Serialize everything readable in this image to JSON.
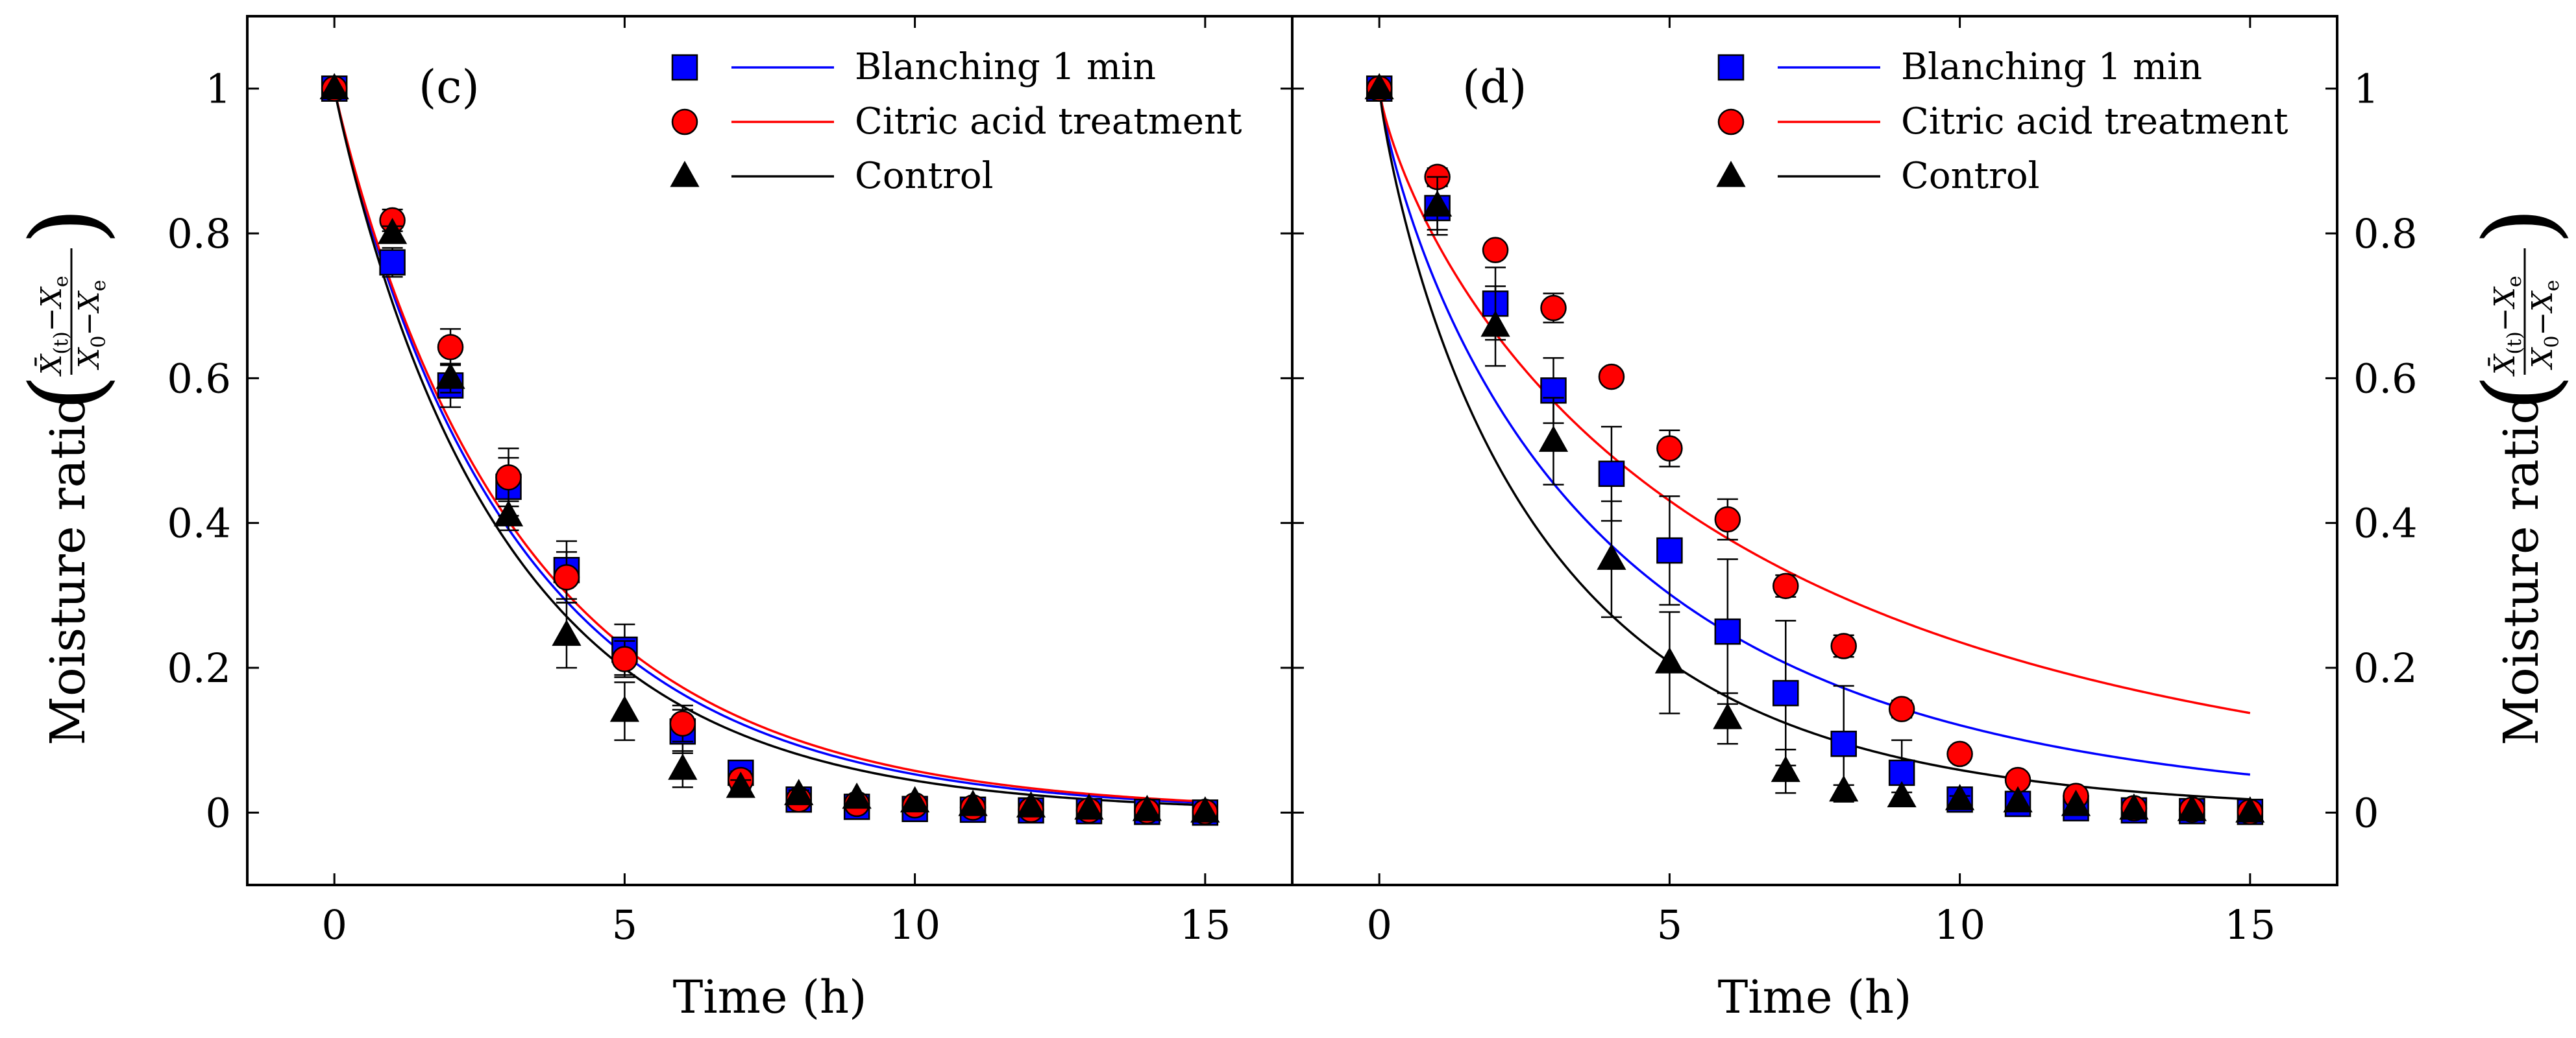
{
  "y_axis_label": {
    "text": "Moisture ratio",
    "numerator_main": "X̄",
    "numerator_sub": "(t)",
    "numerator_rest": "−X",
    "numerator_rest_sub": "e",
    "denominator_main": "X",
    "denominator_sub": "0",
    "denominator_rest": "−X",
    "denominator_rest_sub": "e"
  },
  "series_styles": [
    {
      "name": "Blanching 1 min",
      "color": "#0000ff",
      "marker": "square"
    },
    {
      "name": "Citric acid treatment",
      "color": "#ff0000",
      "marker": "circle"
    },
    {
      "name": "Control",
      "color": "#000000",
      "marker": "triangle"
    }
  ],
  "chart_data": [
    {
      "type": "scatter",
      "panel_label": "(c)",
      "xlabel": "Time (h)",
      "ylabel_side": "left",
      "xlim": [
        -1.5,
        16.5
      ],
      "ylim": [
        -0.1,
        1.1
      ],
      "xticks": [
        0,
        5,
        10,
        15
      ],
      "yticks": [
        0,
        0.2,
        0.4,
        0.6,
        0.8,
        1
      ],
      "xtick_labels": [
        "0",
        "5",
        "10",
        "15"
      ],
      "ytick_labels": [
        "0",
        "0.2",
        "0.4",
        "0.6",
        "0.8",
        "1"
      ],
      "legend_position": "top-right",
      "series": [
        {
          "name": "Blanching 1 min",
          "x": [
            0,
            1,
            2,
            3,
            4,
            5,
            6,
            7,
            8,
            9,
            10,
            11,
            12,
            13,
            14,
            15
          ],
          "y": [
            1.0,
            0.76,
            0.59,
            0.45,
            0.335,
            0.225,
            0.112,
            0.055,
            0.018,
            0.008,
            0.005,
            0.004,
            0.003,
            0.002,
            0.001,
            0.0
          ],
          "err": [
            0,
            0.02,
            0.03,
            0.04,
            0.04,
            0.035,
            0.03,
            0.015,
            0.008,
            0.005,
            0.004,
            0.003,
            0.002,
            0.002,
            0.001,
            0.0
          ],
          "fit_k": 0.33,
          "fit_n": 0.95
        },
        {
          "name": "Citric acid treatment",
          "x": [
            0,
            1,
            2,
            3,
            4,
            5,
            6,
            7,
            8,
            9,
            10,
            11,
            12,
            13,
            14,
            15
          ],
          "y": [
            1.0,
            0.818,
            0.643,
            0.463,
            0.325,
            0.212,
            0.123,
            0.045,
            0.018,
            0.012,
            0.01,
            0.007,
            0.004,
            0.003,
            0.002,
            0.001
          ],
          "err": [
            0,
            0.015,
            0.025,
            0.04,
            0.035,
            0.025,
            0.025,
            0.012,
            0.006,
            0.004,
            0.004,
            0.003,
            0.002,
            0.002,
            0.001,
            0.001
          ],
          "fit_k": 0.32,
          "fit_n": 0.95
        },
        {
          "name": "Control",
          "x": [
            0,
            1,
            2,
            3,
            4,
            5,
            6,
            7,
            8,
            9,
            10,
            11,
            12,
            13,
            14,
            15
          ],
          "y": [
            1.0,
            0.8,
            0.6,
            0.41,
            0.245,
            0.14,
            0.06,
            0.035,
            0.025,
            0.02,
            0.015,
            0.01,
            0.008,
            0.005,
            0.003,
            0.001
          ],
          "err": [
            0,
            0.01,
            0.02,
            0.02,
            0.045,
            0.04,
            0.025,
            0.01,
            0.006,
            0.005,
            0.004,
            0.003,
            0.002,
            0.002,
            0.001,
            0.001
          ],
          "fit_k": 0.35,
          "fit_n": 0.95
        }
      ]
    },
    {
      "type": "scatter",
      "panel_label": "(d)",
      "xlabel": "Time (h)",
      "ylabel_side": "right",
      "xlim": [
        -1.5,
        16.5
      ],
      "ylim": [
        -0.1,
        1.1
      ],
      "xticks": [
        0,
        5,
        10,
        15
      ],
      "yticks": [
        0,
        0.2,
        0.4,
        0.6,
        0.8,
        1
      ],
      "xtick_labels": [
        "0",
        "5",
        "10",
        "15"
      ],
      "ytick_labels": [
        "0",
        "0.2",
        "0.4",
        "0.6",
        "0.8",
        "1"
      ],
      "legend_position": "top-right",
      "series": [
        {
          "name": "Blanching 1 min",
          "x": [
            0,
            1,
            2,
            3,
            4,
            5,
            6,
            7,
            8,
            9,
            10,
            11,
            12,
            13,
            14,
            15
          ],
          "y": [
            1.0,
            0.835,
            0.703,
            0.583,
            0.468,
            0.362,
            0.25,
            0.165,
            0.095,
            0.055,
            0.018,
            0.012,
            0.006,
            0.003,
            0.002,
            0.001
          ],
          "err": [
            0,
            0.03,
            0.05,
            0.045,
            0.065,
            0.075,
            0.1,
            0.1,
            0.08,
            0.045,
            0.01,
            0.008,
            0.004,
            0.003,
            0.002,
            0.001
          ],
          "fit_k": 0.32,
          "fit_n": 0.82
        },
        {
          "name": "Citric acid treatment",
          "x": [
            0,
            1,
            2,
            3,
            4,
            5,
            6,
            7,
            8,
            9,
            10,
            11,
            12,
            13,
            14,
            15
          ],
          "y": [
            1.0,
            0.878,
            0.777,
            0.697,
            0.602,
            0.503,
            0.405,
            0.313,
            0.23,
            0.143,
            0.081,
            0.045,
            0.023,
            0.006,
            0.004,
            0.001
          ],
          "err": [
            0,
            0.012,
            0.01,
            0.02,
            0.01,
            0.025,
            0.028,
            0.015,
            0.015,
            0.012,
            0.008,
            0.005,
            0.004,
            0.003,
            0.002,
            0.001
          ],
          "fit_k": 0.24,
          "fit_n": 0.78
        },
        {
          "name": "Control",
          "x": [
            0,
            1,
            2,
            3,
            4,
            5,
            6,
            7,
            8,
            9,
            10,
            11,
            12,
            13,
            14,
            15
          ],
          "y": [
            1.0,
            0.838,
            0.672,
            0.513,
            0.35,
            0.207,
            0.13,
            0.057,
            0.03,
            0.022,
            0.018,
            0.015,
            0.01,
            0.005,
            0.003,
            0.001
          ],
          "err": [
            0,
            0.04,
            0.055,
            0.06,
            0.08,
            0.07,
            0.035,
            0.03,
            0.008,
            0.006,
            0.005,
            0.004,
            0.003,
            0.002,
            0.002,
            0.001
          ],
          "fit_k": 0.4,
          "fit_n": 0.85
        }
      ]
    }
  ]
}
